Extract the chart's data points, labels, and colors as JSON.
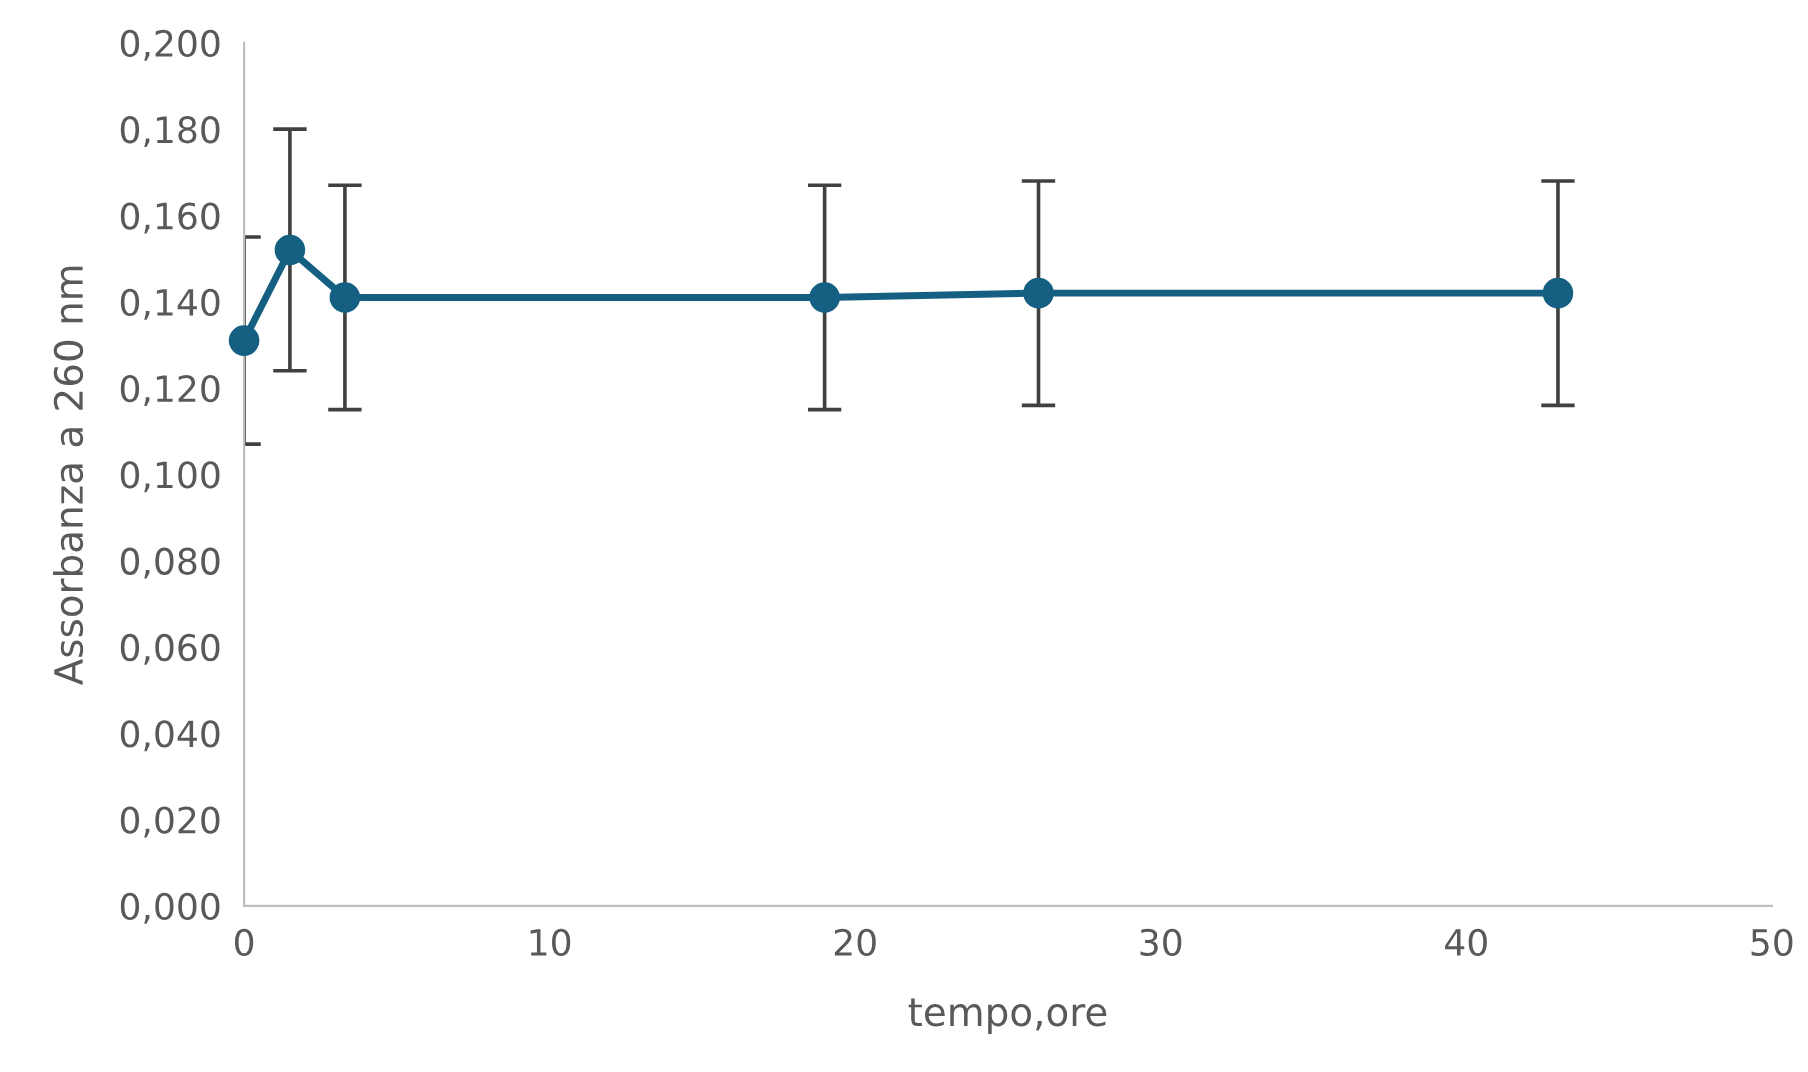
{
  "chart_data": {
    "type": "line",
    "xlabel": "tempo,ore",
    "ylabel": "Assorbanza a 260 nm",
    "x": [
      0,
      1.5,
      3.3,
      19,
      26,
      43
    ],
    "series": [
      {
        "color": "#156082",
        "values": [
          0.131,
          0.152,
          0.141,
          0.141,
          0.142,
          0.142
        ],
        "errors": [
          0.024,
          0.028,
          0.026,
          0.026,
          0.026,
          0.026
        ]
      }
    ],
    "xlim": [
      0,
      50
    ],
    "xticks": [
      0,
      10,
      20,
      30,
      40,
      50
    ],
    "ylim": [
      0,
      0.2
    ],
    "yticks": [
      {
        "value": 0,
        "label": "0,000"
      },
      {
        "value": 0.02,
        "label": "0,020"
      },
      {
        "value": 0.04,
        "label": "0,040"
      },
      {
        "value": 0.06,
        "label": "0,060"
      },
      {
        "value": 0.08,
        "label": "0,080"
      },
      {
        "value": 0.1,
        "label": "0,100"
      },
      {
        "value": 0.12,
        "label": "0,120"
      },
      {
        "value": 0.14,
        "label": "0,140"
      },
      {
        "value": 0.16,
        "label": "0,160"
      },
      {
        "value": 0.18,
        "label": "0,180"
      },
      {
        "value": 0.2,
        "label": "0,200"
      }
    ],
    "marker": "circle",
    "line_style": "solid",
    "grid": false,
    "legend": false
  }
}
